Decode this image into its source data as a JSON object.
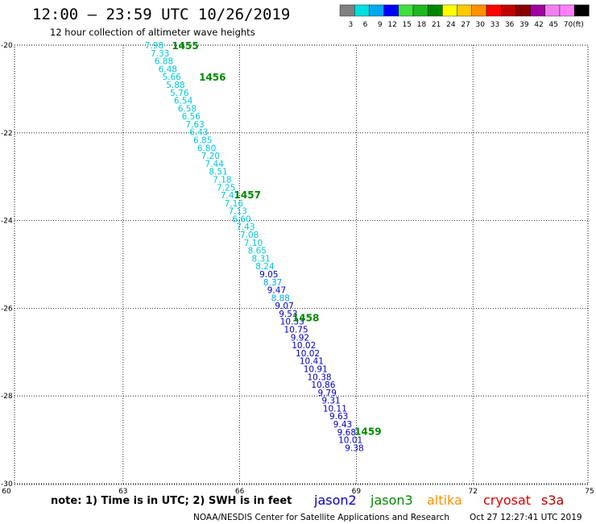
{
  "header": {
    "title": "12:00 – 23:59 UTC 10/26/2019",
    "subtitle": "12 hour collection of altimeter wave heights"
  },
  "legend": {
    "colors": [
      "#808080",
      "#00e0e0",
      "#00a8f0",
      "#0000ff",
      "#40e040",
      "#20b820",
      "#008800",
      "#ffff00",
      "#ffc800",
      "#ff9000",
      "#ff0000",
      "#c00000",
      "#8b0000",
      "#a000a0",
      "#f080f0",
      "#ff80ff",
      "#000000"
    ],
    "labels": [
      "3",
      "6",
      "9",
      "12",
      "15",
      "18",
      "21",
      "24",
      "27",
      "30",
      "33",
      "36",
      "39",
      "42",
      "45",
      "70",
      "(ft)"
    ]
  },
  "axes": {
    "x_ticks": [
      "60",
      "63",
      "66",
      "69",
      "72",
      "75"
    ],
    "y_ticks": [
      "-20",
      "-22",
      "-24",
      "-26",
      "-28",
      "-30"
    ]
  },
  "chart_data": {
    "type": "scatter",
    "xlim": [
      60,
      75
    ],
    "ylim": [
      -30,
      -20
    ],
    "grid": true,
    "track_points": [
      {
        "lon": 63.8,
        "lat": -20.0,
        "swh": "7.98",
        "color": "#00c8d8"
      },
      {
        "lon": 63.95,
        "lat": -20.18,
        "swh": "7.33",
        "color": "#00c8d8"
      },
      {
        "lon": 64.05,
        "lat": -20.36,
        "swh": "6.88",
        "color": "#00c8d8"
      },
      {
        "lon": 64.15,
        "lat": -20.54,
        "swh": "6.48",
        "color": "#00c8d8"
      },
      {
        "lon": 64.25,
        "lat": -20.72,
        "swh": "5.66",
        "color": "#00c8d8"
      },
      {
        "lon": 64.35,
        "lat": -20.9,
        "swh": "5.88",
        "color": "#00c8d8"
      },
      {
        "lon": 64.45,
        "lat": -21.08,
        "swh": "5.76",
        "color": "#00c8d8"
      },
      {
        "lon": 64.55,
        "lat": -21.26,
        "swh": "6.54",
        "color": "#00c8d8"
      },
      {
        "lon": 64.65,
        "lat": -21.44,
        "swh": "6.58",
        "color": "#00c8d8"
      },
      {
        "lon": 64.75,
        "lat": -21.62,
        "swh": "6.56",
        "color": "#00c8d8"
      },
      {
        "lon": 64.85,
        "lat": -21.8,
        "swh": "7.63",
        "color": "#00c8d8"
      },
      {
        "lon": 64.95,
        "lat": -21.98,
        "swh": "6.43",
        "color": "#00c8d8"
      },
      {
        "lon": 65.05,
        "lat": -22.16,
        "swh": "6.85",
        "color": "#00c8d8"
      },
      {
        "lon": 65.15,
        "lat": -22.34,
        "swh": "6.80",
        "color": "#00c8d8"
      },
      {
        "lon": 65.25,
        "lat": -22.52,
        "swh": "7.20",
        "color": "#00c8d8"
      },
      {
        "lon": 65.35,
        "lat": -22.7,
        "swh": "7.44",
        "color": "#00c8d8"
      },
      {
        "lon": 65.45,
        "lat": -22.88,
        "swh": "8.51",
        "color": "#00c8d8"
      },
      {
        "lon": 65.55,
        "lat": -23.06,
        "swh": "7.18",
        "color": "#00c8d8"
      },
      {
        "lon": 65.65,
        "lat": -23.24,
        "swh": "7.25",
        "color": "#00c8d8"
      },
      {
        "lon": 65.75,
        "lat": -23.42,
        "swh": "7.41",
        "color": "#00c8d8"
      },
      {
        "lon": 65.85,
        "lat": -23.6,
        "swh": "7.16",
        "color": "#00c8d8"
      },
      {
        "lon": 65.95,
        "lat": -23.78,
        "swh": "7.13",
        "color": "#00c8d8"
      },
      {
        "lon": 66.05,
        "lat": -23.96,
        "swh": "6.60",
        "color": "#00c8d8"
      },
      {
        "lon": 66.15,
        "lat": -24.14,
        "swh": "7.43",
        "color": "#00c8d8"
      },
      {
        "lon": 66.25,
        "lat": -24.32,
        "swh": "7.08",
        "color": "#00c8d8"
      },
      {
        "lon": 66.35,
        "lat": -24.5,
        "swh": "7.10",
        "color": "#00c8d8"
      },
      {
        "lon": 66.45,
        "lat": -24.68,
        "swh": "8.65",
        "color": "#00c8d8"
      },
      {
        "lon": 66.55,
        "lat": -24.86,
        "swh": "8.31",
        "color": "#00c8d8"
      },
      {
        "lon": 66.65,
        "lat": -25.04,
        "swh": "8.24",
        "color": "#00c8d8"
      },
      {
        "lon": 66.75,
        "lat": -25.22,
        "swh": "9.05",
        "color": "#0000c8"
      },
      {
        "lon": 66.85,
        "lat": -25.4,
        "swh": "8.37",
        "color": "#00a8f0"
      },
      {
        "lon": 66.95,
        "lat": -25.58,
        "swh": "9.47",
        "color": "#0000c8"
      },
      {
        "lon": 67.05,
        "lat": -25.76,
        "swh": "8.88",
        "color": "#00a8f0"
      },
      {
        "lon": 67.15,
        "lat": -25.94,
        "swh": "9.07",
        "color": "#0000c8"
      },
      {
        "lon": 67.25,
        "lat": -26.12,
        "swh": "9.53",
        "color": "#0000c8"
      },
      {
        "lon": 67.35,
        "lat": -26.3,
        "swh": "10.33",
        "color": "#0000c8"
      },
      {
        "lon": 67.45,
        "lat": -26.48,
        "swh": "10.75",
        "color": "#0000c8"
      },
      {
        "lon": 67.55,
        "lat": -26.66,
        "swh": "9.92",
        "color": "#0000c8"
      },
      {
        "lon": 67.65,
        "lat": -26.84,
        "swh": "10.02",
        "color": "#0000c8"
      },
      {
        "lon": 67.75,
        "lat": -27.02,
        "swh": "10.02",
        "color": "#0000c8"
      },
      {
        "lon": 67.85,
        "lat": -27.2,
        "swh": "10.41",
        "color": "#0000c8"
      },
      {
        "lon": 67.95,
        "lat": -27.38,
        "swh": "10.91",
        "color": "#0000c8"
      },
      {
        "lon": 68.05,
        "lat": -27.56,
        "swh": "10.38",
        "color": "#0000c8"
      },
      {
        "lon": 68.15,
        "lat": -27.74,
        "swh": "10.86",
        "color": "#0000c8"
      },
      {
        "lon": 68.25,
        "lat": -27.92,
        "swh": "9.79",
        "color": "#0000c8"
      },
      {
        "lon": 68.35,
        "lat": -28.1,
        "swh": "9.31",
        "color": "#0000c8"
      },
      {
        "lon": 68.45,
        "lat": -28.28,
        "swh": "10.11",
        "color": "#0000c8"
      },
      {
        "lon": 68.55,
        "lat": -28.46,
        "swh": "9.63",
        "color": "#0000c8"
      },
      {
        "lon": 68.65,
        "lat": -28.64,
        "swh": "9.43",
        "color": "#0000c8"
      },
      {
        "lon": 68.75,
        "lat": -28.82,
        "swh": "9.68",
        "color": "#0000c8"
      },
      {
        "lon": 68.85,
        "lat": -29.0,
        "swh": "10.01",
        "color": "#0000c8"
      },
      {
        "lon": 68.95,
        "lat": -29.18,
        "swh": "9.38",
        "color": "#0000c8"
      }
    ],
    "time_labels": [
      {
        "lon": 64.6,
        "lat": -20.0,
        "text": "1455"
      },
      {
        "lon": 65.3,
        "lat": -20.72,
        "text": "1456"
      },
      {
        "lon": 66.2,
        "lat": -23.4,
        "text": "1457"
      },
      {
        "lon": 67.7,
        "lat": -26.2,
        "text": "1458"
      },
      {
        "lon": 69.3,
        "lat": -28.8,
        "text": "1459"
      }
    ]
  },
  "footer": {
    "note": "note: 1) Time is in UTC; 2) SWH is in feet",
    "satellites": [
      {
        "name": "jason2",
        "color": "#0000c8"
      },
      {
        "name": "jason3",
        "color": "#008800"
      },
      {
        "name": "altika",
        "color": "#ff9000"
      },
      {
        "name": "cryosat",
        "color": "#e00000"
      },
      {
        "name": "s3a",
        "color": "#c00000"
      }
    ],
    "credit": "NOAA/NESDIS Center for Satellite Applications and Research",
    "timestamp": "Oct 27 12:27:41 UTC 2019"
  }
}
